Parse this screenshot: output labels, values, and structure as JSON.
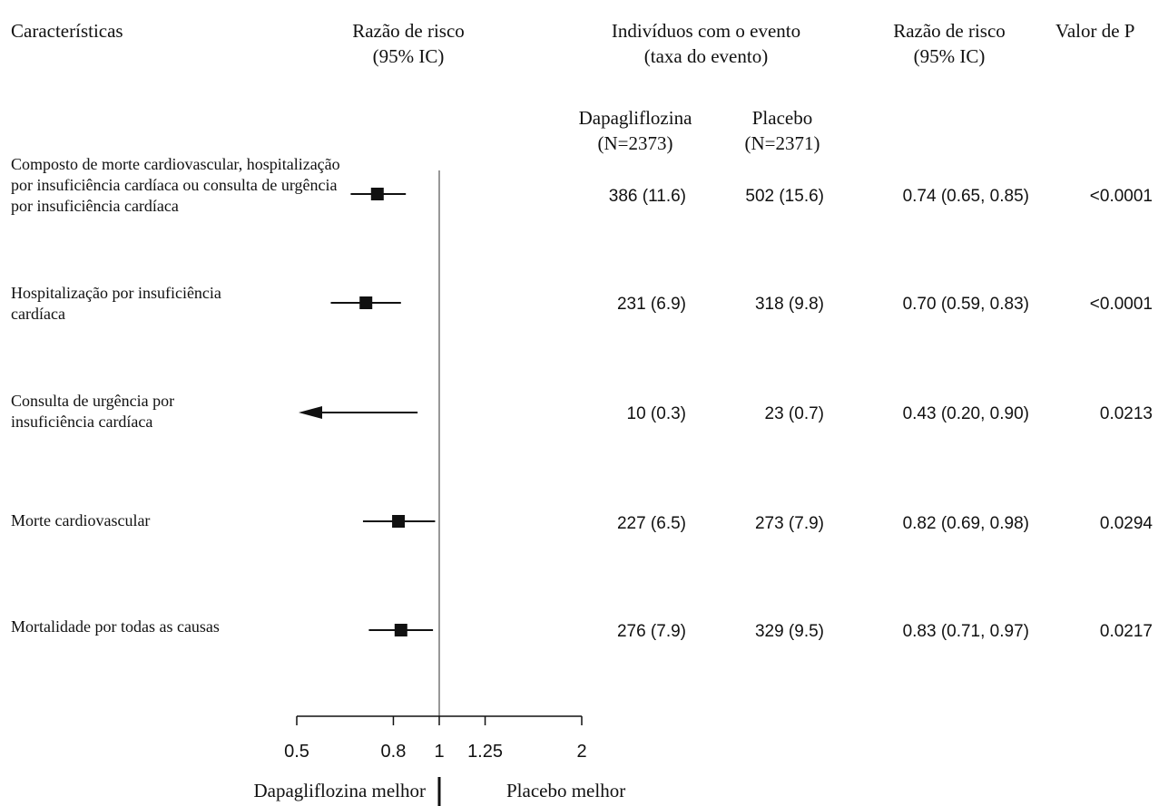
{
  "headers": {
    "characteristics": "Características",
    "hr_plot_line1": "Razão de risco",
    "hr_plot_line2": "(95% IC)",
    "events_line1": "Indivíduos com o evento",
    "events_line2": "(taxa do evento)",
    "hr_col_line1": "Razão de risco",
    "hr_col_line2": "(95% IC)",
    "pvalue": "Valor de P",
    "dapa_name": "Dapagliflozina",
    "dapa_n": "(N=2373)",
    "placebo_name": "Placebo",
    "placebo_n": "(N=2371)"
  },
  "footer": {
    "dapa_better": "Dapagliflozina melhor",
    "placebo_better": "Placebo melhor"
  },
  "chart_data": {
    "type": "forest",
    "x_scale": "log",
    "xlim": [
      0.5,
      2
    ],
    "reference_line": 1,
    "ticks": [
      {
        "value": 0.5,
        "label": "0.5"
      },
      {
        "value": 0.8,
        "label": "0.8"
      },
      {
        "value": 1,
        "label": "1"
      },
      {
        "value": 1.25,
        "label": "1.25"
      },
      {
        "value": 2,
        "label": "2"
      }
    ],
    "rows": [
      {
        "label": "Composto de morte cardiovascular, hospitalização por insuficiência cardíaca ou consulta de urgência por insuficiência cardíaca",
        "dapa_events": "386 (11.6)",
        "placebo_events": "502 (15.6)",
        "hr_text": "0.74 (0.65, 0.85)",
        "p_value": "<0.0001",
        "hr": 0.74,
        "ci_low": 0.65,
        "ci_high": 0.85,
        "lower_arrow": false
      },
      {
        "label": "Hospitalização por insuficiência cardíaca",
        "dapa_events": "231 (6.9)",
        "placebo_events": "318 (9.8)",
        "hr_text": "0.70 (0.59, 0.83)",
        "p_value": "<0.0001",
        "hr": 0.7,
        "ci_low": 0.59,
        "ci_high": 0.83,
        "lower_arrow": false
      },
      {
        "label": "Consulta de urgência por insuficiência cardíaca",
        "dapa_events": "10 (0.3)",
        "placebo_events": "23 (0.7)",
        "hr_text": "0.43 (0.20, 0.90)",
        "p_value": "0.0213",
        "hr": 0.43,
        "ci_low": 0.2,
        "ci_high": 0.9,
        "lower_arrow": true
      },
      {
        "label": "Morte cardiovascular",
        "dapa_events": "227 (6.5)",
        "placebo_events": "273 (7.9)",
        "hr_text": "0.82 (0.69, 0.98)",
        "p_value": "0.0294",
        "hr": 0.82,
        "ci_low": 0.69,
        "ci_high": 0.98,
        "lower_arrow": false
      },
      {
        "label": "Mortalidade por todas as causas",
        "dapa_events": "276 (7.9)",
        "placebo_events": "329 (9.5)",
        "hr_text": "0.83 (0.71, 0.97)",
        "p_value": "0.0217",
        "hr": 0.83,
        "ci_low": 0.71,
        "ci_high": 0.97,
        "lower_arrow": false
      }
    ]
  }
}
